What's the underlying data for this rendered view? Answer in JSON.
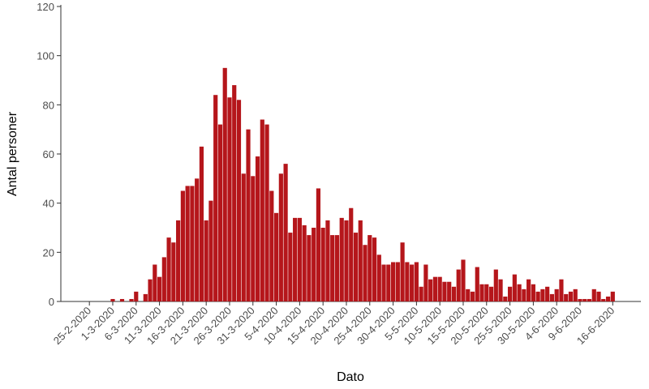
{
  "chart_data": {
    "type": "bar",
    "x_label": "Dato",
    "y_label": "Antal personer",
    "color": "#b5161b",
    "grid": false,
    "ylim": [
      0,
      120
    ],
    "yticks": [
      0,
      20,
      40,
      60,
      80,
      100,
      120
    ],
    "categories": [
      "25-2-2020",
      null,
      null,
      null,
      null,
      "1-3-2020",
      null,
      null,
      null,
      null,
      "6-3-2020",
      null,
      null,
      null,
      null,
      "11-3-2020",
      null,
      null,
      null,
      null,
      "16-3-2020",
      null,
      null,
      null,
      null,
      "21-3-2020",
      null,
      null,
      null,
      null,
      "26-3-2020",
      null,
      null,
      null,
      null,
      "31-3-2020",
      null,
      null,
      null,
      null,
      "5-4-2020",
      null,
      null,
      null,
      null,
      "10-4-2020",
      null,
      null,
      null,
      null,
      "15-4-2020",
      null,
      null,
      null,
      null,
      "20-4-2020",
      null,
      null,
      null,
      null,
      "25-4-2020",
      null,
      null,
      null,
      null,
      "30-4-2020",
      null,
      null,
      null,
      null,
      "5-5-2020",
      null,
      null,
      null,
      null,
      "10-5-2020",
      null,
      null,
      null,
      null,
      "15-5-2020",
      null,
      null,
      null,
      null,
      "20-5-2020",
      null,
      null,
      null,
      null,
      "25-5-2020",
      null,
      null,
      null,
      null,
      "30-5-2020",
      null,
      null,
      null,
      null,
      "4-6-2020",
      null,
      null,
      null,
      null,
      "9-6-2020",
      null,
      null,
      null,
      null,
      null,
      null,
      "16-6-2020"
    ],
    "values": [
      0,
      0,
      0,
      0,
      0,
      1,
      0,
      1,
      0,
      1,
      4,
      0,
      3,
      9,
      15,
      10,
      18,
      26,
      24,
      33,
      45,
      47,
      47,
      50,
      63,
      33,
      41,
      84,
      72,
      95,
      83,
      88,
      82,
      52,
      70,
      51,
      59,
      74,
      72,
      45,
      36,
      52,
      56,
      28,
      34,
      34,
      31,
      27,
      30,
      46,
      30,
      33,
      27,
      27,
      34,
      33,
      38,
      28,
      33,
      23,
      27,
      26,
      19,
      15,
      15,
      16,
      16,
      24,
      16,
      15,
      16,
      6,
      15,
      9,
      10,
      10,
      8,
      8,
      6,
      13,
      17,
      5,
      4,
      14,
      7,
      7,
      6,
      13,
      9,
      2,
      6,
      11,
      7,
      5,
      9,
      7,
      4,
      5,
      6,
      3,
      5,
      9,
      3,
      4,
      5,
      1,
      1,
      1,
      5,
      4,
      1,
      2,
      4
    ]
  }
}
